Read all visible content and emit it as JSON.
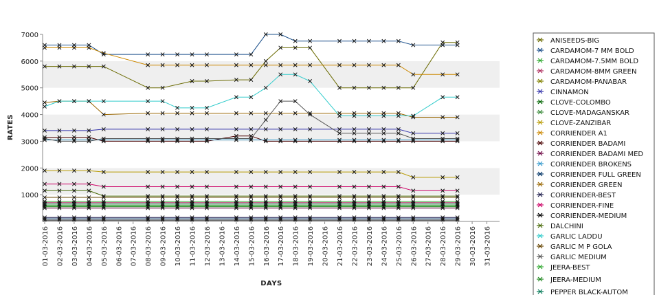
{
  "chart_data": {
    "type": "line",
    "xlabel": "DAYS",
    "ylabel": "RATES",
    "ylim": [
      0,
      7000
    ],
    "yticks": [
      1000,
      2000,
      3000,
      4000,
      5000,
      6000,
      7000
    ],
    "grid": "alternating horizontal bands",
    "legend_position": "right",
    "categories": [
      "01-03-2016",
      "02-03-2016",
      "03-03-2016",
      "04-03-2016",
      "05-03-2016",
      "06-03-2016",
      "07-03-2016",
      "08-03-2016",
      "09-03-2016",
      "10-03-2016",
      "11-03-2016",
      "12-03-2016",
      "13-03-2016",
      "14-03-2016",
      "15-03-2016",
      "16-03-2016",
      "17-03-2016",
      "18-03-2016",
      "19-03-2016",
      "20-03-2016",
      "21-03-2016",
      "22-03-2016",
      "23-03-2016",
      "24-03-2016",
      "25-03-2016",
      "26-03-2016",
      "27-03-2016",
      "28-03-2016",
      "29-03-2016",
      "30-03-2016",
      "31-03-2016"
    ],
    "series": [
      {
        "name": "ANISEEDS-BIG",
        "color": "#6a6a00",
        "values": [
          5800,
          5800,
          5800,
          5800,
          5800,
          null,
          null,
          5000,
          5000,
          null,
          5250,
          5250,
          null,
          5300,
          5300,
          6000,
          6500,
          6500,
          6500,
          null,
          5000,
          5000,
          5000,
          5000,
          5000,
          5000,
          null,
          6700,
          6700,
          null,
          null
        ]
      },
      {
        "name": "CARDAMOM-7 MM BOLD",
        "color": "#1a4f8a",
        "values": [
          6600,
          6600,
          6600,
          6600,
          6250,
          null,
          null,
          6250,
          6250,
          6250,
          6250,
          6250,
          null,
          6250,
          6250,
          7000,
          7000,
          6750,
          6750,
          null,
          6750,
          6750,
          6750,
          6750,
          6750,
          6600,
          null,
          6600,
          6600,
          null,
          null
        ]
      },
      {
        "name": "CARDAMOM-7.5MM BOLD",
        "color": "#2aa82a",
        "values": [
          750,
          750,
          750,
          750,
          750,
          null,
          null,
          750,
          750,
          750,
          750,
          750,
          null,
          750,
          750,
          750,
          750,
          750,
          750,
          null,
          750,
          750,
          750,
          750,
          750,
          750,
          null,
          750,
          750,
          null,
          null
        ]
      },
      {
        "name": "CARDAMOM-8MM GREEN",
        "color": "#b03060",
        "values": [
          700,
          700,
          700,
          700,
          700,
          null,
          null,
          700,
          700,
          700,
          700,
          700,
          null,
          700,
          700,
          700,
          700,
          700,
          700,
          null,
          700,
          700,
          700,
          700,
          700,
          700,
          null,
          700,
          700,
          null,
          null
        ]
      },
      {
        "name": "CARDAMOM-PANABAR",
        "color": "#808000",
        "values": [
          650,
          650,
          650,
          650,
          650,
          null,
          null,
          650,
          650,
          650,
          650,
          650,
          null,
          650,
          650,
          650,
          650,
          650,
          650,
          null,
          650,
          650,
          650,
          650,
          650,
          650,
          null,
          650,
          650,
          null,
          null
        ]
      },
      {
        "name": "CINNAMON",
        "color": "#3333aa",
        "values": [
          3400,
          3400,
          3400,
          3400,
          3450,
          null,
          null,
          3450,
          3450,
          3450,
          3450,
          3450,
          null,
          3450,
          3450,
          3450,
          3450,
          3450,
          3450,
          null,
          3450,
          3450,
          3450,
          3450,
          3450,
          3300,
          null,
          3300,
          3300,
          null,
          null
        ]
      },
      {
        "name": "CLOVE-COLOMBO",
        "color": "#006400",
        "values": [
          600,
          600,
          600,
          600,
          600,
          null,
          null,
          600,
          600,
          600,
          600,
          600,
          null,
          600,
          600,
          600,
          600,
          600,
          600,
          null,
          600,
          600,
          600,
          600,
          600,
          600,
          null,
          600,
          600,
          null,
          null
        ]
      },
      {
        "name": "CLOVE-MADAGANSKAR",
        "color": "#3c8c3c",
        "values": [
          550,
          550,
          550,
          550,
          550,
          null,
          null,
          550,
          550,
          550,
          550,
          550,
          null,
          550,
          550,
          550,
          550,
          550,
          550,
          null,
          550,
          550,
          550,
          550,
          550,
          550,
          null,
          550,
          550,
          null,
          null
        ]
      },
      {
        "name": "CLOVE-ZANZIBAR",
        "color": "#b89a00",
        "values": [
          1900,
          1900,
          1900,
          1900,
          1850,
          null,
          null,
          1850,
          1850,
          1850,
          1850,
          1850,
          null,
          1850,
          1850,
          1850,
          1850,
          1850,
          1850,
          null,
          1850,
          1850,
          1850,
          1850,
          1850,
          1650,
          null,
          1650,
          1650,
          null,
          null
        ]
      },
      {
        "name": "CORRIENDER A1",
        "color": "#cc8800",
        "values": [
          6500,
          6500,
          6500,
          6500,
          6300,
          null,
          null,
          5850,
          5850,
          5850,
          5850,
          5850,
          null,
          5850,
          5850,
          5850,
          5850,
          5850,
          5850,
          null,
          5850,
          5850,
          5850,
          5850,
          5850,
          5500,
          null,
          5500,
          5500,
          null,
          null
        ]
      },
      {
        "name": "CORRIENDER BADAMI",
        "color": "#4a0000",
        "values": [
          3150,
          3150,
          3150,
          3150,
          3000,
          null,
          null,
          3000,
          3000,
          3000,
          3000,
          3000,
          null,
          3200,
          3200,
          3000,
          3000,
          3000,
          3000,
          null,
          3000,
          3000,
          3000,
          3000,
          3000,
          3000,
          null,
          3000,
          3000,
          null,
          null
        ]
      },
      {
        "name": "CORRIENDER BADAMI MED",
        "color": "#6a0040",
        "values": [
          500,
          500,
          500,
          500,
          500,
          null,
          null,
          500,
          500,
          500,
          500,
          500,
          null,
          500,
          500,
          500,
          500,
          500,
          500,
          null,
          500,
          500,
          500,
          500,
          500,
          500,
          null,
          500,
          500,
          null,
          null
        ]
      },
      {
        "name": "CORRIENDER BROKENS",
        "color": "#3399cc",
        "values": [
          3050,
          3050,
          3050,
          3050,
          3050,
          null,
          null,
          3050,
          3050,
          3050,
          3050,
          3050,
          null,
          3050,
          3050,
          3050,
          3050,
          3050,
          3050,
          null,
          3050,
          3050,
          3050,
          3050,
          3050,
          3050,
          null,
          3050,
          3050,
          null,
          null
        ]
      },
      {
        "name": "CORRIENDER FULL GREEN",
        "color": "#003366",
        "values": [
          100,
          100,
          100,
          100,
          100,
          null,
          null,
          100,
          100,
          100,
          100,
          100,
          null,
          100,
          100,
          100,
          100,
          100,
          100,
          null,
          100,
          100,
          100,
          100,
          100,
          100,
          null,
          100,
          100,
          null,
          null
        ]
      },
      {
        "name": "CORRIENDER GREEN",
        "color": "#996600",
        "values": [
          4450,
          4500,
          4500,
          4500,
          4000,
          null,
          null,
          4050,
          4050,
          4050,
          4050,
          4050,
          null,
          4050,
          4050,
          4050,
          4050,
          4050,
          4050,
          null,
          4050,
          4050,
          4050,
          4050,
          4050,
          3900,
          null,
          3900,
          3900,
          null,
          null
        ]
      },
      {
        "name": "CORRIENDER-BEST",
        "color": "#1a1a4a",
        "values": [
          150,
          150,
          150,
          150,
          150,
          null,
          null,
          150,
          150,
          150,
          150,
          150,
          null,
          150,
          150,
          150,
          150,
          150,
          150,
          null,
          150,
          150,
          150,
          150,
          150,
          150,
          null,
          150,
          150,
          null,
          null
        ]
      },
      {
        "name": "CORRIENDER-FINE",
        "color": "#cc0066",
        "values": [
          1400,
          1400,
          1400,
          1400,
          1300,
          null,
          null,
          1300,
          1300,
          1300,
          1300,
          1300,
          null,
          1300,
          1300,
          1300,
          1300,
          1300,
          1300,
          null,
          1300,
          1300,
          1300,
          1300,
          1300,
          1150,
          null,
          1150,
          1150,
          null,
          null
        ]
      },
      {
        "name": "CORRIENDER-MEDIUM",
        "color": "#000000",
        "values": [
          50,
          50,
          50,
          50,
          50,
          null,
          null,
          50,
          50,
          50,
          50,
          50,
          null,
          50,
          50,
          50,
          50,
          50,
          50,
          null,
          50,
          50,
          50,
          50,
          50,
          50,
          null,
          50,
          50,
          null,
          null
        ]
      },
      {
        "name": "DALCHINI",
        "color": "#446600",
        "values": [
          1150,
          1150,
          1150,
          1150,
          950,
          null,
          null,
          950,
          950,
          950,
          950,
          950,
          null,
          950,
          950,
          950,
          950,
          950,
          950,
          null,
          950,
          950,
          950,
          950,
          950,
          950,
          null,
          950,
          950,
          null,
          null
        ]
      },
      {
        "name": "GARLIC LADDU",
        "color": "#33cccc",
        "values": [
          4300,
          4500,
          4500,
          4500,
          4500,
          null,
          null,
          4500,
          4500,
          4250,
          4250,
          4250,
          null,
          4650,
          4650,
          5000,
          5500,
          5500,
          5250,
          null,
          3950,
          3950,
          3950,
          3950,
          3950,
          3950,
          null,
          4650,
          4650,
          null,
          null
        ]
      },
      {
        "name": "GARLIC M P GOLA",
        "color": "#664400",
        "values": [
          900,
          900,
          900,
          900,
          900,
          null,
          null,
          900,
          900,
          900,
          900,
          900,
          null,
          900,
          900,
          900,
          900,
          900,
          900,
          null,
          900,
          900,
          900,
          900,
          900,
          900,
          null,
          900,
          900,
          null,
          null
        ]
      },
      {
        "name": "GARLIC MEDIUM",
        "color": "#555555",
        "values": [
          3100,
          3000,
          3000,
          3000,
          3100,
          null,
          null,
          3100,
          3100,
          3100,
          3100,
          3100,
          null,
          3100,
          3100,
          3800,
          4500,
          4500,
          4000,
          null,
          3300,
          3300,
          3300,
          3300,
          3300,
          3100,
          null,
          3100,
          3100,
          null,
          null
        ]
      },
      {
        "name": "JEERA-BEST",
        "color": "#33aa33",
        "values": [
          600,
          600,
          600,
          600,
          600,
          null,
          null,
          600,
          600,
          600,
          600,
          600,
          null,
          600,
          600,
          600,
          600,
          600,
          600,
          null,
          600,
          600,
          600,
          600,
          600,
          600,
          null,
          600,
          600,
          null,
          null
        ]
      },
      {
        "name": "JEERA-MEDIUM",
        "color": "#228822",
        "values": [
          550,
          550,
          550,
          550,
          550,
          null,
          null,
          550,
          550,
          550,
          550,
          550,
          null,
          550,
          550,
          550,
          550,
          550,
          550,
          null,
          550,
          550,
          550,
          550,
          550,
          550,
          null,
          550,
          550,
          null,
          null
        ]
      },
      {
        "name": "PEPPER BLACK-AUTOM",
        "color": "#007755",
        "values": [
          650,
          650,
          650,
          650,
          650,
          null,
          null,
          650,
          650,
          650,
          650,
          650,
          null,
          650,
          650,
          650,
          650,
          650,
          650,
          null,
          650,
          650,
          650,
          650,
          650,
          650,
          null,
          650,
          650,
          null,
          null
        ]
      }
    ]
  }
}
